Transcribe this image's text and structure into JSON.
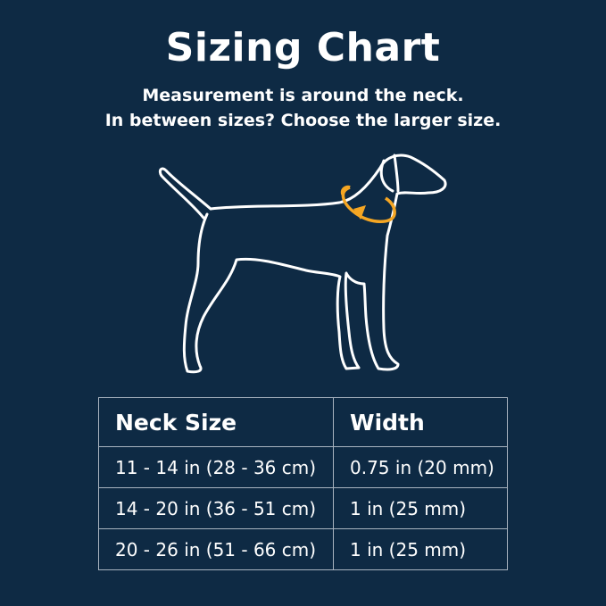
{
  "title": "Sizing Chart",
  "subtitle_lines": [
    "Measurement is around the neck.",
    "In between sizes? Choose the larger size."
  ],
  "colors": {
    "background": "#0e2a44",
    "accent": "#f5a623",
    "outline": "#ffffff"
  },
  "illustration": "dog-outline-with-neck-measure-icon",
  "table": {
    "headers": [
      "Neck Size",
      "Width"
    ],
    "rows": [
      [
        "11 - 14 in (28 - 36 cm)",
        "0.75 in (20 mm)"
      ],
      [
        "14 - 20 in (36 - 51 cm)",
        "1 in (25 mm)"
      ],
      [
        "20 - 26 in (51 - 66 cm)",
        "1 in (25 mm)"
      ]
    ]
  }
}
